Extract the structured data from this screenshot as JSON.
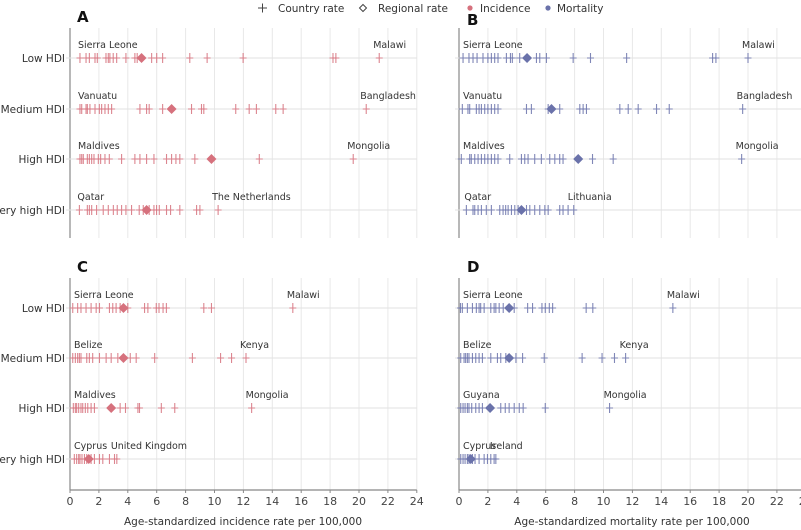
{
  "legend": {
    "country_rate": "Country rate",
    "regional_rate": "Regional rate",
    "incidence": "Incidence",
    "mortality": "Mortality"
  },
  "colors": {
    "incidence": "#d6717d",
    "mortality": "#6a72aa",
    "grid": "#e8e8e8",
    "axis": "#888888"
  },
  "chart_data": [
    {
      "type": "scatter",
      "panel": "A",
      "measure": "incidence",
      "xlabel": "",
      "xlim": [
        0,
        24
      ],
      "grid": true,
      "show_x_ticks": false,
      "categories": [
        "Low HDI",
        "Medium HDI",
        "High HDI",
        "Very high HDI"
      ],
      "rows": [
        {
          "category": "Low HDI",
          "label_min": "Sierra Leone",
          "label_max": "Malawi",
          "regional": 4.95,
          "countries": [
            0.69,
            1.11,
            1.34,
            1.73,
            1.89,
            2.49,
            2.65,
            2.76,
            2.99,
            3.23,
            3.87,
            4.49,
            4.65,
            5.65,
            6.0,
            6.41,
            8.29,
            9.49,
            11.98,
            18.2,
            18.4,
            21.4
          ]
        },
        {
          "category": "Medium HDI",
          "label_min": "Vanuatu",
          "label_max": "Bangladesh",
          "regional": 7.03,
          "countries": [
            0.69,
            0.81,
            1.11,
            1.2,
            1.38,
            1.73,
            2.03,
            2.19,
            2.42,
            2.65,
            2.88,
            4.84,
            5.3,
            5.48,
            6.41,
            8.41,
            9.1,
            9.26,
            11.47,
            12.4,
            12.9,
            14.24,
            14.75,
            20.5
          ]
        },
        {
          "category": "High HDI",
          "label_min": "Maldives",
          "label_max": "Mongolia",
          "regional": 9.79,
          "countries": [
            0.69,
            0.81,
            0.92,
            1.2,
            1.34,
            1.5,
            1.66,
            1.96,
            2.12,
            2.42,
            2.72,
            3.57,
            4.49,
            4.84,
            5.3,
            5.81,
            6.68,
            7.03,
            7.33,
            7.6,
            8.64,
            13.1,
            19.6
          ]
        },
        {
          "category": "Very high HDI",
          "label_min": "Qatar",
          "label_max": "The Netherlands",
          "regional": 5.3,
          "countries": [
            0.65,
            1.2,
            1.34,
            1.5,
            1.84,
            2.3,
            2.65,
            3.0,
            3.27,
            3.57,
            3.87,
            4.26,
            4.79,
            5.07,
            5.48,
            5.81,
            5.99,
            6.18,
            6.68,
            6.96,
            7.6,
            8.76,
            8.99,
            10.25
          ]
        }
      ]
    },
    {
      "type": "scatter",
      "panel": "B",
      "measure": "mortality",
      "xlabel": "",
      "xlim": [
        0,
        24
      ],
      "grid": true,
      "show_x_ticks": false,
      "categories": [
        "Low HDI",
        "Medium HDI",
        "High HDI",
        "Very high HDI"
      ],
      "rows": [
        {
          "category": "Low HDI",
          "label_min": "Sierra Leone",
          "label_max": "Malawi",
          "regional": 4.71,
          "countries": [
            0.28,
            0.69,
            0.97,
            1.25,
            1.66,
            2.0,
            2.24,
            2.47,
            2.7,
            3.28,
            3.56,
            3.69,
            4.2,
            5.36,
            5.59,
            6.05,
            7.9,
            9.1,
            11.6,
            17.55,
            17.78,
            20.0
          ]
        },
        {
          "category": "Medium HDI",
          "label_min": "Vanuatu",
          "label_max": "Bangladesh",
          "regional": 6.4,
          "countries": [
            0.23,
            0.62,
            0.74,
            1.2,
            1.39,
            1.55,
            1.78,
            2.0,
            2.24,
            2.47,
            2.7,
            4.67,
            5.01,
            6.17,
            6.97,
            8.36,
            8.59,
            8.82,
            11.13,
            11.71,
            12.4,
            13.67,
            14.55,
            19.63
          ]
        },
        {
          "category": "High HDI",
          "label_min": "Maldives",
          "label_max": "Mongolia",
          "regional": 8.25,
          "countries": [
            0.16,
            0.74,
            0.85,
            1.09,
            1.32,
            1.55,
            1.78,
            2.0,
            2.24,
            2.47,
            2.7,
            3.51,
            4.32,
            4.55,
            4.78,
            5.24,
            5.7,
            6.28,
            6.63,
            6.97,
            7.2,
            9.24,
            10.67,
            19.56
          ]
        },
        {
          "category": "Very high HDI",
          "label_min": "Qatar",
          "label_max": "Lithuania",
          "regional": 4.32,
          "countries": [
            0.51,
            0.97,
            1.09,
            1.32,
            1.55,
            1.89,
            2.24,
            2.82,
            3.05,
            3.23,
            3.4,
            3.63,
            3.86,
            4.09,
            4.67,
            4.9,
            5.24,
            5.59,
            5.94,
            6.17,
            6.97,
            7.2,
            7.55,
            7.94
          ]
        }
      ]
    },
    {
      "type": "scatter",
      "panel": "C",
      "measure": "incidence",
      "xlabel": "Age-standardized incidence rate per 100,000",
      "xlim": [
        0,
        24
      ],
      "grid": true,
      "show_x_ticks": true,
      "xticks": [
        "0",
        "2",
        "4",
        "6",
        "8",
        "10",
        "12",
        "14",
        "16",
        "18",
        "20",
        "22",
        "24"
      ],
      "categories": [
        "Low HDI",
        "Medium HDI",
        "High HDI",
        "Very high HDI"
      ],
      "rows": [
        {
          "category": "Low HDI",
          "label_min": "Sierra Leone",
          "label_max": "Malawi",
          "regional": 3.7,
          "countries": [
            0.19,
            0.53,
            0.76,
            1.11,
            1.46,
            1.81,
            2.04,
            2.73,
            2.96,
            3.19,
            3.47,
            4.0,
            5.16,
            5.39,
            5.97,
            6.16,
            6.44,
            6.67,
            9.26,
            9.79,
            15.42
          ]
        },
        {
          "category": "Medium HDI",
          "label_min": "Belize",
          "label_max": "Kenya",
          "regional": 3.7,
          "countries": [
            0.19,
            0.37,
            0.53,
            0.65,
            0.76,
            1.16,
            1.34,
            1.57,
            2.04,
            2.5,
            2.85,
            3.31,
            4.17,
            4.58,
            5.86,
            8.47,
            10.42,
            11.18,
            12.18
          ]
        },
        {
          "category": "High HDI",
          "label_min": "Maldives",
          "label_max": "Mongolia",
          "regional": 2.85,
          "countries": [
            0.23,
            0.37,
            0.46,
            0.6,
            0.76,
            0.88,
            1.06,
            1.23,
            1.46,
            1.69,
            3.47,
            3.84,
            4.7,
            4.81,
            6.32,
            7.25,
            12.57
          ]
        },
        {
          "category": "Very high HDI",
          "label_min": "Cyprus",
          "label_max": "United Kingdom",
          "regional": 1.3,
          "countries": [
            0.3,
            0.46,
            0.6,
            0.69,
            0.83,
            1.0,
            1.16,
            1.46,
            1.69,
            2.04,
            2.27,
            2.73,
            3.08,
            3.24
          ]
        }
      ]
    },
    {
      "type": "scatter",
      "panel": "D",
      "measure": "mortality",
      "xlabel": "Age-standardized mortality rate per 100,000",
      "xlim": [
        0,
        24
      ],
      "grid": true,
      "show_x_ticks": true,
      "xticks": [
        "0",
        "2",
        "4",
        "6",
        "8",
        "10",
        "12",
        "14",
        "16",
        "18",
        "20",
        "22",
        "24"
      ],
      "categories": [
        "Low HDI",
        "Medium HDI",
        "High HDI",
        "Very high HDI"
      ],
      "rows": [
        {
          "category": "Low HDI",
          "label_min": "Sierra Leone",
          "label_max": "Malawi",
          "regional": 3.47,
          "countries": [
            0.1,
            0.23,
            0.58,
            0.93,
            1.2,
            1.39,
            1.5,
            1.74,
            2.2,
            2.43,
            2.55,
            2.78,
            3.06,
            3.82,
            4.75,
            5.09,
            5.74,
            5.97,
            6.25,
            6.48,
            8.8,
            9.26,
            14.8
          ]
        },
        {
          "category": "Medium HDI",
          "label_min": "Belize",
          "label_max": "Kenya",
          "regional": 3.47,
          "countries": [
            0.12,
            0.35,
            0.46,
            0.58,
            0.69,
            0.93,
            1.16,
            1.39,
            1.62,
            2.2,
            2.66,
            2.89,
            3.24,
            3.94,
            4.4,
            5.9,
            8.52,
            9.9,
            10.76,
            11.53
          ]
        },
        {
          "category": "High HDI",
          "label_min": "Guyana",
          "label_max": "Mongolia",
          "regional": 2.15,
          "countries": [
            0.12,
            0.28,
            0.42,
            0.58,
            0.69,
            0.88,
            1.16,
            1.39,
            1.62,
            2.89,
            3.2,
            3.47,
            3.82,
            4.17,
            4.44,
            5.97,
            10.42
          ]
        },
        {
          "category": "Very high HDI",
          "label_min": "Cyprus",
          "label_max": "Ireland",
          "regional": 0.81,
          "countries": [
            0.12,
            0.28,
            0.42,
            0.58,
            0.69,
            0.93,
            1.11,
            1.39,
            1.74,
            1.97,
            2.2,
            2.43,
            2.55
          ]
        }
      ]
    }
  ]
}
